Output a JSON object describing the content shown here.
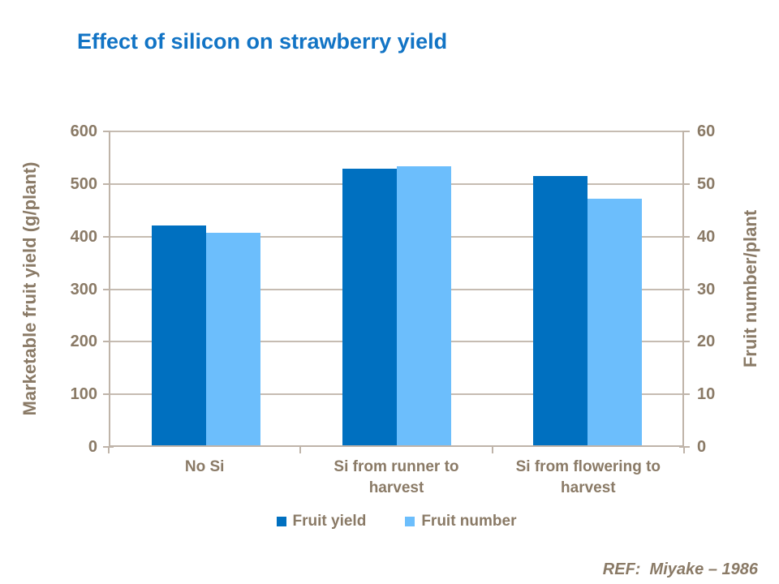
{
  "slide": {
    "title": "Effect of silicon on strawberry yield",
    "reference": "REF:  Miyake – 1986"
  },
  "colors": {
    "title_blue": "#1274C5",
    "axis_text_brown": "#8A7A66",
    "grid_line": "#C6BCB2",
    "axis_line": "#BFB4A9",
    "fruit_yield_bar": "#0070C0",
    "fruit_number_bar": "#6CBEFC"
  },
  "chart_data": {
    "type": "bar",
    "title": "Effect of silicon on strawberry yield",
    "categories": [
      "No Si",
      "Si from runner to harvest",
      "Si from flowering to harvest"
    ],
    "series": [
      {
        "name": "Fruit yield",
        "axis": "left",
        "color": "#0070C0",
        "values": [
          420,
          528,
          515
        ]
      },
      {
        "name": "Fruit number",
        "axis": "right",
        "color": "#6CBEFC",
        "values": [
          40.7,
          53.4,
          47.1
        ]
      }
    ],
    "left_axis": {
      "title": "Marketable fruit yield (g/plant)",
      "min": 0,
      "max": 600,
      "step": 100
    },
    "right_axis": {
      "title": "Fruit number/plant",
      "min": 0,
      "max": 60,
      "step": 10
    },
    "legend": {
      "position": "bottom"
    },
    "grid": true
  }
}
